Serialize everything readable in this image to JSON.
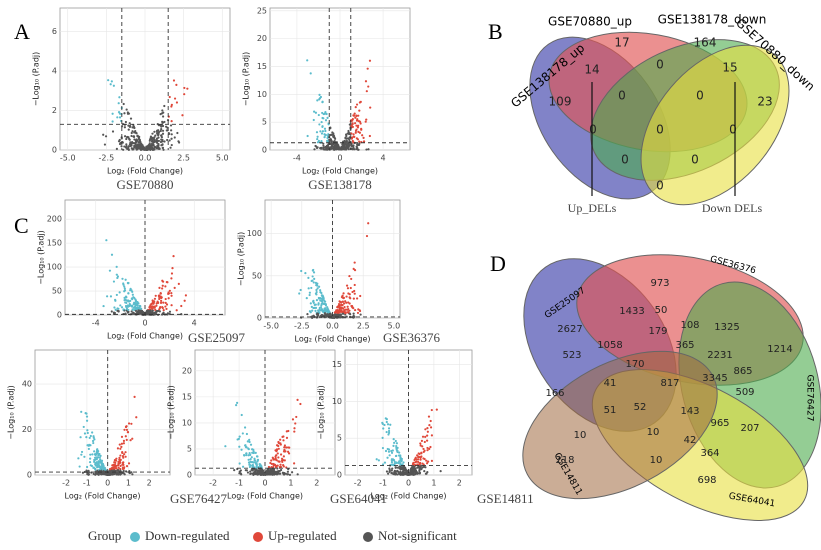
{
  "panel_labels": [
    "A",
    "B",
    "C",
    "D"
  ],
  "volcano_plots": [
    {
      "title": "GSE70880",
      "xlabel": "Log₂ (Fold Change)",
      "ylabel": "−Log₁₀ (P.adj)",
      "xlim": [
        -5.5,
        5.5
      ],
      "ylim": [
        0,
        7.2
      ],
      "xticks": [
        {
          "value": -5,
          "label": "-5.0"
        },
        {
          "value": -2.5,
          "label": "-2.5"
        },
        {
          "value": 0,
          "label": "0.0"
        },
        {
          "value": 2.5,
          "label": "2.5"
        },
        {
          "value": 5,
          "label": "5.0"
        }
      ],
      "yticks": [
        0,
        2,
        4,
        6
      ],
      "fc_cutoff": [
        -1.5,
        1.5
      ],
      "padj_cutoff": 1.3
    },
    {
      "title": "GSE138178",
      "xlabel": "Log₂ (Fold Change)",
      "ylabel": "−Log₁₀ (P.adj)",
      "xlim": [
        -6.5,
        6.5
      ],
      "ylim": [
        0,
        25.5
      ],
      "xticks": [
        -4,
        0,
        4
      ],
      "yticks": [
        0,
        5,
        10,
        15,
        20,
        25
      ],
      "fc_cutoff": [
        -1,
        1
      ],
      "padj_cutoff": 1.3
    },
    {
      "title": "GSE25097",
      "xlabel": "Log₂ (Fold Change)",
      "ylabel": "−Log₁₀ (P.adj)",
      "xlim": [
        -6.5,
        6.5
      ],
      "ylim": [
        0,
        240
      ],
      "xticks": [
        -4,
        0,
        4
      ],
      "yticks": [
        0,
        50,
        100,
        150,
        200
      ],
      "fc_cutoff": [
        0
      ],
      "padj_cutoff": 1.3
    },
    {
      "title": "GSE36376",
      "xlabel": "Log₂ (Fold Change)",
      "ylabel": "−Log₁₀ (P.adj)",
      "xlim": [
        -5.5,
        5.5
      ],
      "ylim": [
        0,
        140
      ],
      "xticks": [
        {
          "value": -5,
          "label": "-5.0"
        },
        {
          "value": -2.5,
          "label": "-2.5"
        },
        {
          "value": 0,
          "label": "0.0"
        },
        {
          "value": 2.5,
          "label": "2.5"
        },
        {
          "value": 5,
          "label": "5.0"
        }
      ],
      "yticks": [
        0,
        50,
        100
      ],
      "fc_cutoff": [
        0
      ],
      "padj_cutoff": 1.3
    },
    {
      "title": "GSE76427",
      "xlabel": "Log₂ (Fold Change)",
      "ylabel": "−Log₁₀ (P.adj)",
      "xlim": [
        -3.5,
        3
      ],
      "ylim": [
        0,
        55
      ],
      "xticks": [
        -2,
        -1,
        0,
        1,
        2
      ],
      "yticks": [
        0,
        20,
        40
      ],
      "fc_cutoff": [
        0
      ],
      "padj_cutoff": 1.3
    },
    {
      "title": "GSE64041",
      "xlabel": "Log₂ (Fold Change)",
      "ylabel": "−Log₁₀ (P.adj)",
      "xlim": [
        -2.7,
        2.7
      ],
      "ylim": [
        0,
        24
      ],
      "xticks": [
        -2,
        -1,
        0,
        1,
        2
      ],
      "yticks": [
        0,
        5,
        10,
        15,
        20
      ],
      "fc_cutoff": [
        0
      ],
      "padj_cutoff": 1.3
    },
    {
      "title": "GSE14811",
      "xlabel": "Log₂ (Fold Change)",
      "ylabel": "−Log₁₀ (P.adj)",
      "xlim": [
        -2.5,
        2.5
      ],
      "ylim": [
        0,
        17
      ],
      "xticks": [
        -2,
        -1,
        0,
        1,
        2
      ],
      "yticks": [
        0,
        5,
        10,
        15
      ],
      "fc_cutoff": [
        0
      ],
      "padj_cutoff": 1.3
    }
  ],
  "venn_b": {
    "sets": [
      "GSE70880_up",
      "GSE138178_down",
      "GSE138178_up",
      "GSE70880_down"
    ],
    "counts": [
      17,
      164,
      14,
      0,
      15,
      109,
      0,
      0,
      23,
      0,
      0,
      0,
      0,
      0,
      0
    ],
    "annotations": [
      "Up_DELs",
      "Down DELs"
    ]
  },
  "venn_d": {
    "sets": [
      "GSE25097",
      "GSE36376",
      "GSE76427",
      "GSE64041",
      "GSE14811"
    ],
    "counts": [
      973,
      2627,
      1433,
      50,
      1325,
      179,
      108,
      1214,
      523,
      1058,
      365,
      2231,
      865,
      170,
      41,
      817,
      3345,
      509,
      166,
      51,
      52,
      143,
      965,
      207,
      10,
      10,
      42,
      364,
      218,
      10,
      698
    ]
  },
  "legend": {
    "title": "Group",
    "items": [
      {
        "label": "Down-regulated",
        "color": "#5bbccc"
      },
      {
        "label": "Up-regulated",
        "color": "#e0483a"
      },
      {
        "label": "Not-significant",
        "color": "#555555"
      }
    ]
  }
}
